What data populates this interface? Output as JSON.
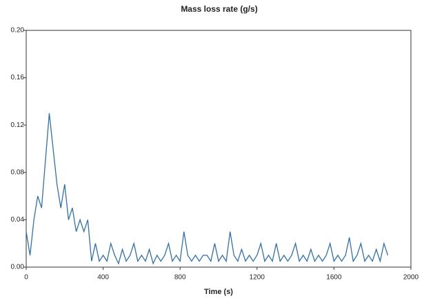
{
  "chart_data": {
    "type": "line",
    "title": "Mass loss rate (g/s)",
    "x_label": "Time (s)",
    "x": [
      0,
      20,
      40,
      60,
      80,
      100,
      120,
      140,
      160,
      180,
      200,
      220,
      240,
      260,
      280,
      300,
      320,
      340,
      360,
      380,
      400,
      420,
      440,
      460,
      480,
      500,
      520,
      540,
      560,
      580,
      600,
      620,
      640,
      660,
      680,
      700,
      720,
      740,
      760,
      780,
      800,
      820,
      840,
      860,
      880,
      900,
      920,
      940,
      960,
      980,
      1000,
      1020,
      1040,
      1060,
      1080,
      1100,
      1120,
      1140,
      1160,
      1180,
      1200,
      1220,
      1240,
      1260,
      1280,
      1300,
      1320,
      1340,
      1360,
      1380,
      1400,
      1420,
      1440,
      1460,
      1480,
      1500,
      1520,
      1540,
      1560,
      1580,
      1600,
      1620,
      1640,
      1660,
      1680,
      1700,
      1720,
      1740,
      1760,
      1780,
      1800,
      1820,
      1840,
      1860,
      1880
    ],
    "series": [
      {
        "color": "#2f6fb0",
        "values": [
          0.03,
          0.01,
          0.04,
          0.06,
          0.05,
          0.09,
          0.13,
          0.1,
          0.07,
          0.05,
          0.07,
          0.04,
          0.05,
          0.03,
          0.04,
          0.03,
          0.04,
          0.005,
          0.02,
          0.005,
          0.01,
          0.005,
          0.02,
          0.01,
          0.003,
          0.015,
          0.005,
          0.01,
          0.02,
          0.005,
          0.01,
          0.005,
          0.015,
          0.003,
          0.01,
          0.005,
          0.01,
          0.02,
          0.005,
          0.01,
          0.005,
          0.03,
          0.01,
          0.005,
          0.01,
          0.005,
          0.01,
          0.01,
          0.005,
          0.02,
          0.005,
          0.01,
          0.005,
          0.03,
          0.01,
          0.005,
          0.015,
          0.005,
          0.01,
          0.005,
          0.01,
          0.02,
          0.005,
          0.01,
          0.005,
          0.02,
          0.005,
          0.01,
          0.005,
          0.01,
          0.02,
          0.005,
          0.01,
          0.005,
          0.015,
          0.005,
          0.01,
          0.005,
          0.01,
          0.02,
          0.005,
          0.01,
          0.005,
          0.01,
          0.025,
          0.005,
          0.01,
          0.02,
          0.005,
          0.01,
          0.005,
          0.015,
          0.005,
          0.02,
          0.01
        ]
      }
    ],
    "xlim": [
      0,
      2000
    ],
    "xticks": [
      0,
      400,
      800,
      1200,
      1600,
      2000
    ],
    "ylim": [
      0,
      0.2
    ],
    "yticks": [
      {
        "value": 0,
        "label": "0.00"
      },
      {
        "value": 0.04,
        "label": "0.04"
      },
      {
        "value": 0.08,
        "label": "0.08"
      },
      {
        "value": 0.12,
        "label": "0.12"
      },
      {
        "value": 0.16,
        "label": "0.16"
      },
      {
        "value": 0.2,
        "label": "0.20"
      }
    ]
  }
}
